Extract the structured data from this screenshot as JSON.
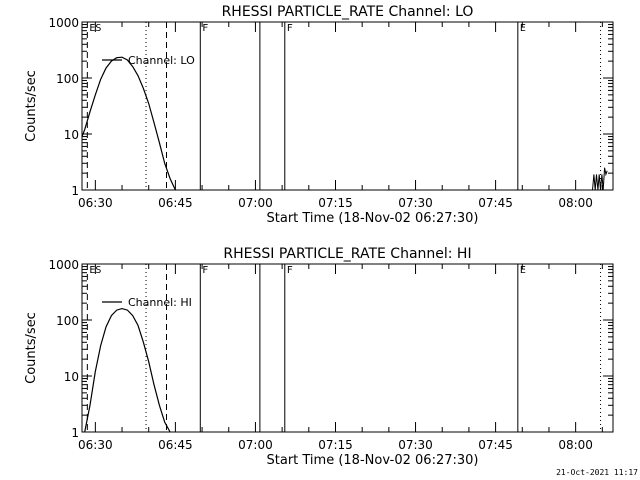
{
  "chart_data": [
    {
      "type": "line",
      "title": "RHESSI PARTICLE_RATE Channel: LO",
      "xlabel": "Start Time (18-Nov-02 06:27:30)",
      "ylabel": "Counts/sec",
      "y_scale": "log",
      "ylim": [
        1,
        1000
      ],
      "xlim": [
        "06:27:30",
        "08:07:00"
      ],
      "x_ticks": [
        "06:30",
        "06:45",
        "07:00",
        "07:15",
        "07:30",
        "07:45",
        "08:00"
      ],
      "y_ticks": [
        "1",
        "10",
        "100",
        "1000"
      ],
      "legend": "Channel: LO",
      "legend_position": "top-left",
      "grid": false,
      "series": [
        {
          "name": "Channel: LO",
          "x": [
            "06:27:30",
            "06:28:00",
            "06:29:00",
            "06:30:00",
            "06:31:00",
            "06:32:00",
            "06:33:00",
            "06:34:00",
            "06:35:00",
            "06:36:00",
            "06:37:00",
            "06:38:00",
            "06:39:00",
            "06:40:00",
            "06:41:00",
            "06:42:00",
            "06:43:00",
            "06:44:00",
            "06:45:00"
          ],
          "y": [
            9,
            12,
            25,
            50,
            95,
            150,
            200,
            230,
            235,
            210,
            160,
            110,
            65,
            35,
            16,
            7,
            3,
            1.6,
            1
          ],
          "x2": [
            "08:03:10",
            "08:03:25",
            "08:03:40",
            "08:03:55",
            "08:04:10",
            "08:04:25",
            "08:04:40",
            "08:04:55",
            "08:05:10",
            "08:05:25",
            "08:05:40",
            "08:05:55"
          ],
          "y2": [
            1,
            1.9,
            1,
            1.9,
            1,
            1.9,
            1,
            1.9,
            1,
            2.5,
            1.9,
            2.2
          ]
        }
      ],
      "markers": [
        {
          "label": "ES",
          "time": "06:28:30",
          "style": "dashed"
        },
        {
          "label": "",
          "time": "06:39:30",
          "style": "dotted"
        },
        {
          "label": "",
          "time": "06:43:20",
          "style": "dashed"
        },
        {
          "label": "F",
          "time": "06:49:40",
          "style": "solid"
        },
        {
          "label": "",
          "time": "07:00:50",
          "style": "solid"
        },
        {
          "label": "F",
          "time": "07:05:30",
          "style": "solid"
        },
        {
          "label": "E",
          "time": "07:49:10",
          "style": "solid"
        },
        {
          "label": "",
          "time": "08:04:40",
          "style": "dotted"
        }
      ]
    },
    {
      "type": "line",
      "title": "RHESSI PARTICLE_RATE Channel: HI",
      "xlabel": "Start Time (18-Nov-02 06:27:30)",
      "ylabel": "Counts/sec",
      "y_scale": "log",
      "ylim": [
        1,
        1000
      ],
      "xlim": [
        "06:27:30",
        "08:07:00"
      ],
      "x_ticks": [
        "06:30",
        "06:45",
        "07:00",
        "07:15",
        "07:30",
        "07:45",
        "08:00"
      ],
      "y_ticks": [
        "1",
        "10",
        "100",
        "1000"
      ],
      "legend": "Channel: HI",
      "legend_position": "top-left",
      "grid": false,
      "series": [
        {
          "name": "Channel: HI",
          "x": [
            "06:28:00",
            "06:29:00",
            "06:30:00",
            "06:31:00",
            "06:32:00",
            "06:33:00",
            "06:34:00",
            "06:35:00",
            "06:36:00",
            "06:37:00",
            "06:38:00",
            "06:39:00",
            "06:40:00",
            "06:41:00",
            "06:42:00",
            "06:43:00",
            "06:44:00"
          ],
          "y": [
            1,
            3,
            12,
            35,
            75,
            120,
            150,
            160,
            150,
            120,
            80,
            40,
            18,
            7,
            3,
            1.5,
            1
          ],
          "x2": [],
          "y2": []
        }
      ],
      "markers": [
        {
          "label": "ES",
          "time": "06:28:30",
          "style": "dashed"
        },
        {
          "label": "",
          "time": "06:39:30",
          "style": "dotted"
        },
        {
          "label": "",
          "time": "06:43:20",
          "style": "dashed"
        },
        {
          "label": "F",
          "time": "06:49:40",
          "style": "solid"
        },
        {
          "label": "",
          "time": "07:00:50",
          "style": "solid"
        },
        {
          "label": "F",
          "time": "07:05:30",
          "style": "solid"
        },
        {
          "label": "E",
          "time": "07:49:10",
          "style": "solid"
        },
        {
          "label": "",
          "time": "08:04:40",
          "style": "dotted"
        }
      ]
    }
  ],
  "footer": {
    "timestamp": "21-Oct-2021 11:17"
  }
}
